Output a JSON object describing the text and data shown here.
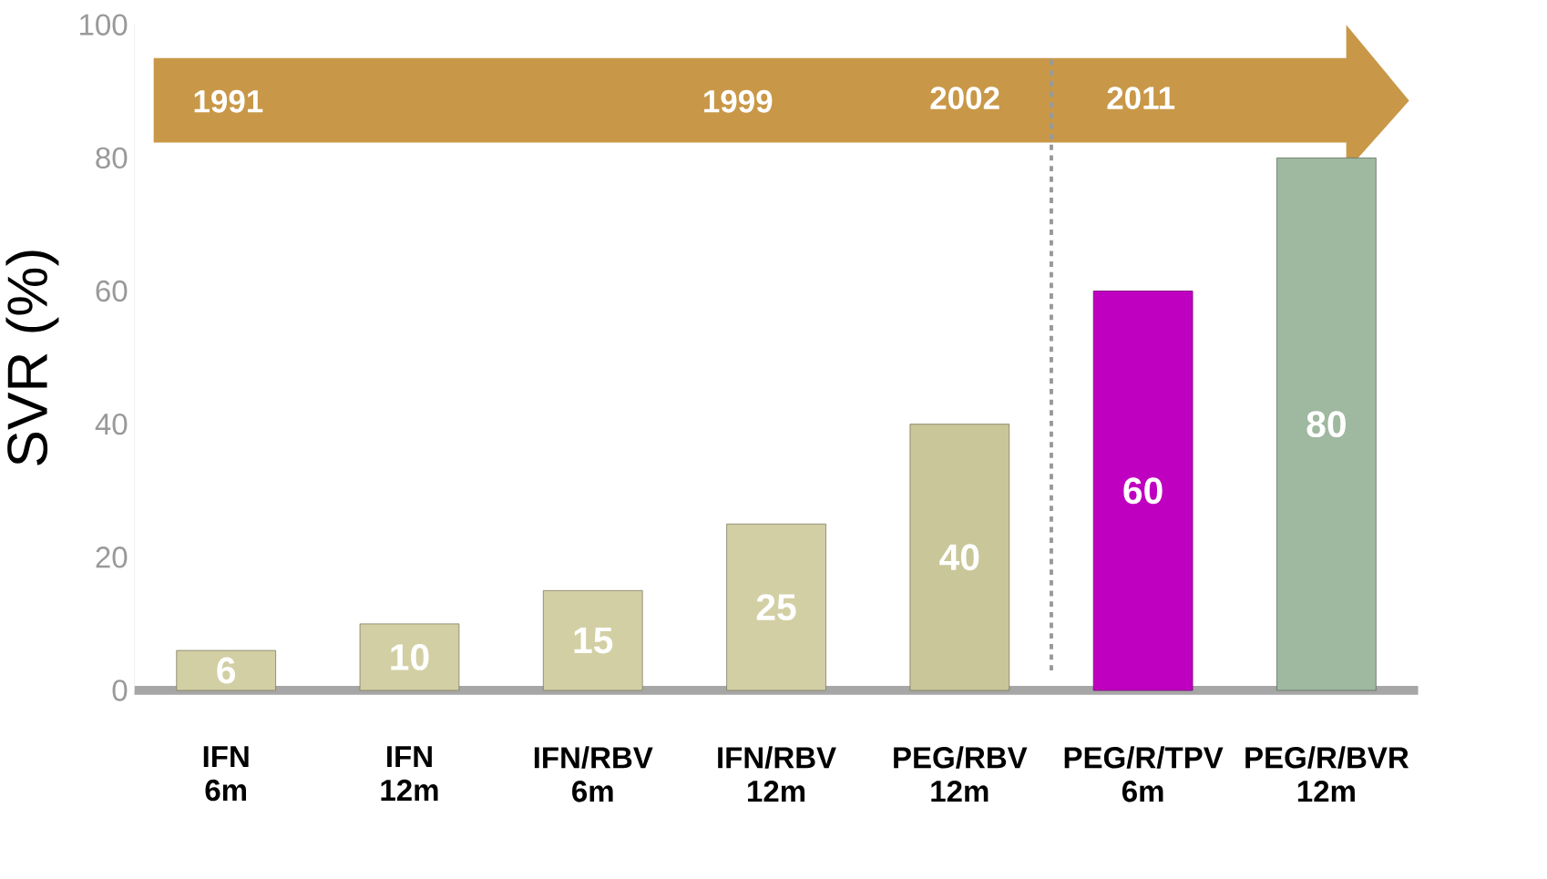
{
  "chart_data": {
    "type": "bar",
    "ylabel": "SVR  (%)",
    "categories": [
      "IFN 6m",
      "IFN 12m",
      "IFN/RBV 6m",
      "IFN/RBV 12m",
      "PEG/RBV 12m",
      "PEG/R/TPV 6m",
      "PEG/R/BVR 12m"
    ],
    "values": [
      6,
      10,
      15,
      25,
      40,
      60,
      80
    ],
    "colors": [
      "#d2cfa4",
      "#d2cfa4",
      "#d2cfa4",
      "#d2cfa4",
      "#c9c699",
      "#c000c0",
      "#9fb8a0"
    ],
    "data_labels": true,
    "ylim": [
      0,
      100
    ],
    "yticks": [
      0,
      20,
      40,
      60,
      80,
      100
    ],
    "annotations": [
      "1991",
      "1999",
      "2002",
      "2011"
    ]
  }
}
